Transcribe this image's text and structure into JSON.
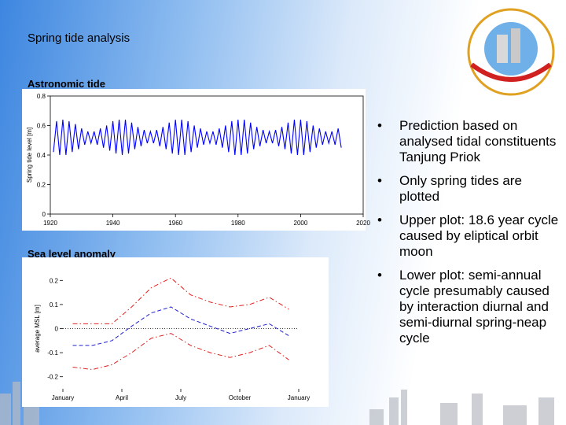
{
  "slide": {
    "title": "Spring tide analysis",
    "section_labels": [
      "Astronomic tide",
      "Sea level anomaly"
    ],
    "bullets": [
      "Prediction based on analysed tidal constituents Tanjung Priok",
      "Only spring tides are plotted",
      "Upper plot: 18.6 year cycle caused by eliptical orbit moon",
      "Lower plot: semi-annual cycle presumably caused by interaction diurnal and semi-diurnal spring-neap cycle"
    ]
  },
  "chart_data": [
    {
      "type": "line",
      "ylabel": "Spring tide level [m]",
      "x": [
        1921,
        1922,
        1923,
        1924,
        1925,
        1926,
        1927,
        1928,
        1929,
        1930,
        1931,
        1932,
        1933,
        1934,
        1935,
        1936,
        1937,
        1938,
        1939,
        1940,
        1941,
        1942,
        1943,
        1944,
        1945,
        1946,
        1947,
        1948,
        1949,
        1950,
        1951,
        1952,
        1953,
        1954,
        1955,
        1956,
        1957,
        1958,
        1959,
        1960,
        1961,
        1962,
        1963,
        1964,
        1965,
        1966,
        1967,
        1968,
        1969,
        1970,
        1971,
        1972,
        1973,
        1974,
        1975,
        1976,
        1977,
        1978,
        1979,
        1980,
        1981,
        1982,
        1983,
        1984,
        1985,
        1986,
        1987,
        1988,
        1989,
        1990,
        1991,
        1992,
        1993,
        1994,
        1995,
        1996,
        1997,
        1998,
        1999,
        2000,
        2001,
        2002,
        2003,
        2004,
        2005,
        2006,
        2007,
        2008,
        2009,
        2010,
        2011,
        2012,
        2013
      ],
      "series": [
        {
          "color": "#0000ff",
          "values": [
            0.42,
            0.63,
            0.4,
            0.64,
            0.4,
            0.63,
            0.42,
            0.61,
            0.44,
            0.58,
            0.47,
            0.56,
            0.48,
            0.56,
            0.47,
            0.58,
            0.45,
            0.6,
            0.43,
            0.63,
            0.41,
            0.64,
            0.4,
            0.64,
            0.41,
            0.62,
            0.44,
            0.59,
            0.46,
            0.57,
            0.48,
            0.56,
            0.48,
            0.57,
            0.46,
            0.59,
            0.44,
            0.62,
            0.41,
            0.64,
            0.4,
            0.64,
            0.4,
            0.63,
            0.42,
            0.6,
            0.45,
            0.58,
            0.47,
            0.56,
            0.48,
            0.56,
            0.47,
            0.58,
            0.45,
            0.6,
            0.42,
            0.63,
            0.4,
            0.64,
            0.4,
            0.64,
            0.41,
            0.62,
            0.44,
            0.59,
            0.46,
            0.57,
            0.48,
            0.56,
            0.48,
            0.57,
            0.46,
            0.59,
            0.44,
            0.62,
            0.41,
            0.64,
            0.4,
            0.64,
            0.4,
            0.63,
            0.42,
            0.6,
            0.45,
            0.58,
            0.47,
            0.56,
            0.48,
            0.56,
            0.47,
            0.58,
            0.45
          ]
        }
      ],
      "xlim": [
        1920,
        2020
      ],
      "xticks": [
        1920,
        1940,
        1960,
        1980,
        2000,
        2020
      ],
      "ylim": [
        0,
        0.8
      ],
      "yticks": [
        0,
        0.2,
        0.4,
        0.6,
        0.8
      ],
      "frame": true
    },
    {
      "type": "line",
      "ylabel": "average MSL [m]",
      "x": [
        0.5,
        1.5,
        2.5,
        3.5,
        4.5,
        5.5,
        6.5,
        7.5,
        8.5,
        9.5,
        10.5,
        11.5
      ],
      "series": [
        {
          "color": "#e02020",
          "dash": "dashdot",
          "values": [
            0.02,
            0.02,
            0.02,
            0.09,
            0.17,
            0.21,
            0.14,
            0.11,
            0.09,
            0.1,
            0.13,
            0.08
          ]
        },
        {
          "color": "#2020d0",
          "dash": "dashed",
          "values": [
            -0.07,
            -0.07,
            -0.05,
            0.01,
            0.065,
            0.09,
            0.04,
            0.01,
            -0.02,
            0.0,
            0.02,
            -0.03
          ]
        },
        {
          "color": "#e02020",
          "dash": "dashdot",
          "values": [
            -0.16,
            -0.17,
            -0.15,
            -0.1,
            -0.04,
            -0.02,
            -0.07,
            -0.1,
            -0.12,
            -0.1,
            -0.07,
            -0.13
          ]
        }
      ],
      "xlim": [
        0,
        12
      ],
      "xticks": [
        {
          "value": 0,
          "label": "January"
        },
        {
          "value": 3,
          "label": "April"
        },
        {
          "value": 6,
          "label": "July"
        },
        {
          "value": 9,
          "label": "October"
        },
        {
          "value": 12,
          "label": "January"
        }
      ],
      "ylim": [
        -0.25,
        0.25
      ],
      "yticks": [
        -0.2,
        -0.1,
        0,
        0.1,
        0.2
      ],
      "zero_line": true,
      "frame": false
    }
  ]
}
